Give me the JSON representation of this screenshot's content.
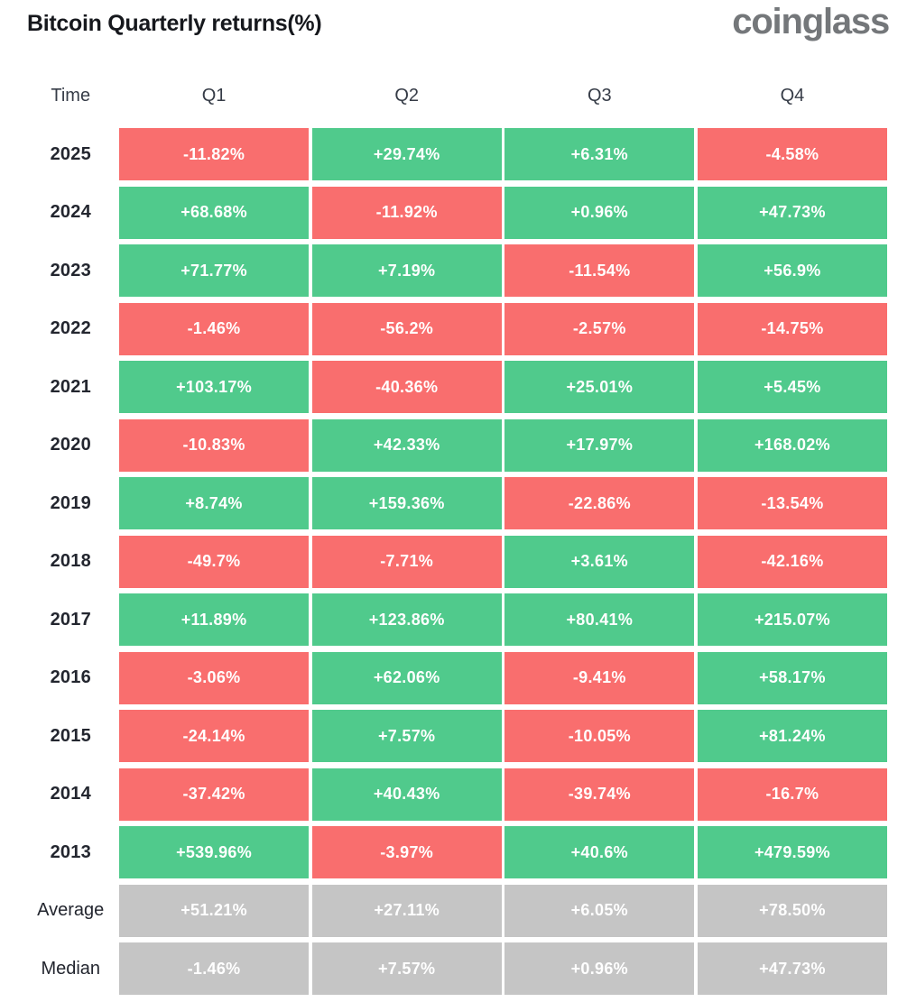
{
  "header": {
    "title": "Bitcoin Quarterly returns(%)",
    "brand": "coinglass"
  },
  "columns": [
    "Time",
    "Q1",
    "Q2",
    "Q3",
    "Q4"
  ],
  "colors": {
    "positive": "#50ca8c",
    "negative": "#f96e6e",
    "neutral": "#c5c5c5"
  },
  "chart_data": {
    "type": "heatmap",
    "title": "Bitcoin Quarterly returns(%)",
    "unit": "%",
    "categories": [
      "Q1",
      "Q2",
      "Q3",
      "Q4"
    ],
    "legend": "green = positive quarterly return, red = negative quarterly return, gray = summary statistics",
    "rows": [
      {
        "label": "2025",
        "type": "year",
        "values": [
          "-11.82%",
          "+29.74%",
          "+6.31%",
          "-4.58%"
        ]
      },
      {
        "label": "2024",
        "type": "year",
        "values": [
          "+68.68%",
          "-11.92%",
          "+0.96%",
          "+47.73%"
        ]
      },
      {
        "label": "2023",
        "type": "year",
        "values": [
          "+71.77%",
          "+7.19%",
          "-11.54%",
          "+56.9%"
        ]
      },
      {
        "label": "2022",
        "type": "year",
        "values": [
          "-1.46%",
          "-56.2%",
          "-2.57%",
          "-14.75%"
        ]
      },
      {
        "label": "2021",
        "type": "year",
        "values": [
          "+103.17%",
          "-40.36%",
          "+25.01%",
          "+5.45%"
        ]
      },
      {
        "label": "2020",
        "type": "year",
        "values": [
          "-10.83%",
          "+42.33%",
          "+17.97%",
          "+168.02%"
        ]
      },
      {
        "label": "2019",
        "type": "year",
        "values": [
          "+8.74%",
          "+159.36%",
          "-22.86%",
          "-13.54%"
        ]
      },
      {
        "label": "2018",
        "type": "year",
        "values": [
          "-49.7%",
          "-7.71%",
          "+3.61%",
          "-42.16%"
        ]
      },
      {
        "label": "2017",
        "type": "year",
        "values": [
          "+11.89%",
          "+123.86%",
          "+80.41%",
          "+215.07%"
        ]
      },
      {
        "label": "2016",
        "type": "year",
        "values": [
          "-3.06%",
          "+62.06%",
          "-9.41%",
          "+58.17%"
        ]
      },
      {
        "label": "2015",
        "type": "year",
        "values": [
          "-24.14%",
          "+7.57%",
          "-10.05%",
          "+81.24%"
        ]
      },
      {
        "label": "2014",
        "type": "year",
        "values": [
          "-37.42%",
          "+40.43%",
          "-39.74%",
          "-16.7%"
        ]
      },
      {
        "label": "2013",
        "type": "year",
        "values": [
          "+539.96%",
          "-3.97%",
          "+40.6%",
          "+479.59%"
        ]
      },
      {
        "label": "Average",
        "type": "summary",
        "values": [
          "+51.21%",
          "+27.11%",
          "+6.05%",
          "+78.50%"
        ]
      },
      {
        "label": "Median",
        "type": "summary",
        "values": [
          "-1.46%",
          "+7.57%",
          "+0.96%",
          "+47.73%"
        ]
      }
    ]
  }
}
